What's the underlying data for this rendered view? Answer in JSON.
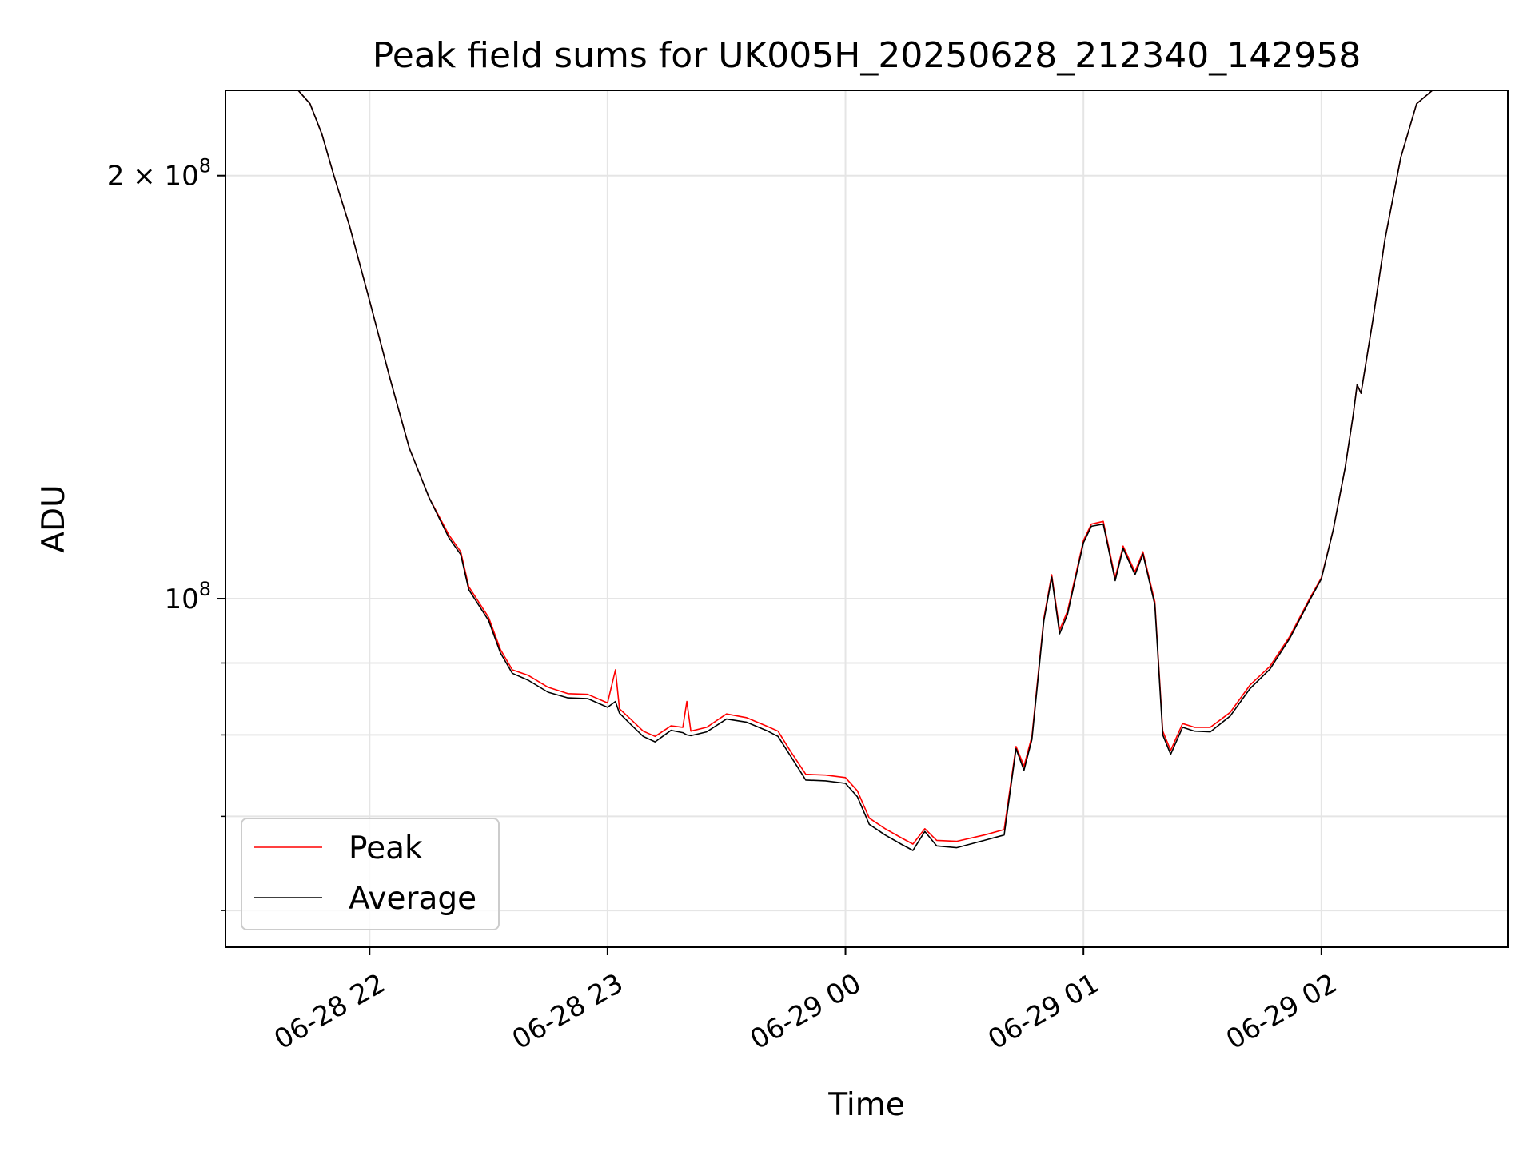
{
  "chart_data": {
    "type": "line",
    "title": "Peak field sums for UK005H_20250628_212340_142958",
    "xlabel": "Time",
    "ylabel": "ADU",
    "x_ticks": [
      "06-28 22",
      "06-28 23",
      "06-29 00",
      "06-29 01",
      "06-29 02"
    ],
    "y_ticks": [
      {
        "value": 200000000,
        "base": "2 × 10",
        "exp": "8"
      },
      {
        "value": 100000000,
        "base": "10",
        "exp": "8"
      }
    ],
    "y_scale": "log",
    "grid": true,
    "legend_position": "lower-left",
    "xlim": [
      "2025-06-28 21:23:40",
      "2025-06-29 02:47:00"
    ],
    "ylim": [
      56500000,
      230000000
    ],
    "series": [
      {
        "name": "Peak",
        "color": "#ff0000",
        "points": [
          [
            "2025-06-28 21:23:40",
            230000000
          ],
          [
            "2025-06-28 21:42:00",
            230000000
          ],
          [
            "2025-06-28 21:45:00",
            225000000
          ],
          [
            "2025-06-28 21:48:00",
            214000000
          ],
          [
            "2025-06-28 21:51:00",
            200000000
          ],
          [
            "2025-06-28 21:55:00",
            184000000
          ],
          [
            "2025-06-28 22:00:00",
            163000000
          ],
          [
            "2025-06-28 22:05:00",
            144000000
          ],
          [
            "2025-06-28 22:10:00",
            128000000
          ],
          [
            "2025-06-28 22:15:00",
            118000000
          ],
          [
            "2025-06-28 22:20:00",
            111000000
          ],
          [
            "2025-06-28 22:23:00",
            108000000
          ],
          [
            "2025-06-28 22:25:00",
            102000000
          ],
          [
            "2025-06-28 22:30:00",
            97000000
          ],
          [
            "2025-06-28 22:33:00",
            92000000
          ],
          [
            "2025-06-28 22:36:00",
            89000000
          ],
          [
            "2025-06-28 22:40:00",
            88200000
          ],
          [
            "2025-06-28 22:45:00",
            86500000
          ],
          [
            "2025-06-28 22:50:00",
            85600000
          ],
          [
            "2025-06-28 22:55:00",
            85500000
          ],
          [
            "2025-06-28 23:00:00",
            84300000
          ],
          [
            "2025-06-28 23:02:00",
            89000000
          ],
          [
            "2025-06-28 23:03:00",
            83500000
          ],
          [
            "2025-06-28 23:06:00",
            82000000
          ],
          [
            "2025-06-28 23:09:00",
            80500000
          ],
          [
            "2025-06-28 23:12:00",
            79800000
          ],
          [
            "2025-06-28 23:16:00",
            81200000
          ],
          [
            "2025-06-28 23:19:00",
            81000000
          ],
          [
            "2025-06-28 23:20:00",
            84500000
          ],
          [
            "2025-06-28 23:21:00",
            80500000
          ],
          [
            "2025-06-28 23:25:00",
            81000000
          ],
          [
            "2025-06-28 23:30:00",
            82800000
          ],
          [
            "2025-06-28 23:35:00",
            82300000
          ],
          [
            "2025-06-28 23:40:00",
            81200000
          ],
          [
            "2025-06-28 23:43:00",
            80500000
          ],
          [
            "2025-06-28 23:46:00",
            78000000
          ],
          [
            "2025-06-28 23:50:00",
            75000000
          ],
          [
            "2025-06-28 23:55:00",
            74900000
          ],
          [
            "2025-06-29 00:00:00",
            74600000
          ],
          [
            "2025-06-29 00:03:00",
            73000000
          ],
          [
            "2025-06-29 00:06:00",
            69800000
          ],
          [
            "2025-06-29 00:10:00",
            68600000
          ],
          [
            "2025-06-29 00:14:00",
            67600000
          ],
          [
            "2025-06-29 00:17:00",
            66900000
          ],
          [
            "2025-06-29 00:20:00",
            68600000
          ],
          [
            "2025-06-29 00:23:00",
            67300000
          ],
          [
            "2025-06-29 00:28:00",
            67200000
          ],
          [
            "2025-06-29 00:35:00",
            67900000
          ],
          [
            "2025-06-29 00:40:00",
            68500000
          ],
          [
            "2025-06-29 00:43:00",
            78500000
          ],
          [
            "2025-06-29 00:45:00",
            76000000
          ],
          [
            "2025-06-29 00:47:00",
            79800000
          ],
          [
            "2025-06-29 00:50:00",
            96800000
          ],
          [
            "2025-06-29 00:52:00",
            104000000
          ],
          [
            "2025-06-29 00:54:00",
            95000000
          ],
          [
            "2025-06-29 00:56:00",
            98000000
          ],
          [
            "2025-06-29 01:00:00",
            110000000
          ],
          [
            "2025-06-29 01:02:00",
            113000000
          ],
          [
            "2025-06-29 01:05:00",
            113500000
          ],
          [
            "2025-06-29 01:08:00",
            103500000
          ],
          [
            "2025-06-29 01:10:00",
            109000000
          ],
          [
            "2025-06-29 01:13:00",
            104500000
          ],
          [
            "2025-06-29 01:15:00",
            108000000
          ],
          [
            "2025-06-29 01:18:00",
            99500000
          ],
          [
            "2025-06-29 01:20:00",
            80500000
          ],
          [
            "2025-06-29 01:22:00",
            78000000
          ],
          [
            "2025-06-29 01:25:00",
            81500000
          ],
          [
            "2025-06-29 01:28:00",
            81000000
          ],
          [
            "2025-06-29 01:32:00",
            81000000
          ],
          [
            "2025-06-29 01:37:00",
            83000000
          ],
          [
            "2025-06-29 01:42:00",
            86800000
          ],
          [
            "2025-06-29 01:47:00",
            89500000
          ],
          [
            "2025-06-29 01:52:00",
            94000000
          ],
          [
            "2025-06-29 01:57:00",
            100000000
          ],
          [
            "2025-06-29 02:00:00",
            103500000
          ],
          [
            "2025-06-29 02:03:00",
            112000000
          ],
          [
            "2025-06-29 02:06:00",
            124000000
          ],
          [
            "2025-06-29 02:08:00",
            135000000
          ],
          [
            "2025-06-29 02:09:00",
            142000000
          ],
          [
            "2025-06-29 02:10:00",
            140000000
          ],
          [
            "2025-06-29 02:13:00",
            158000000
          ],
          [
            "2025-06-29 02:16:00",
            180000000
          ],
          [
            "2025-06-29 02:20:00",
            206000000
          ],
          [
            "2025-06-29 02:24:00",
            225000000
          ],
          [
            "2025-06-29 02:28:00",
            230000000
          ],
          [
            "2025-06-29 02:47:00",
            230000000
          ]
        ]
      },
      {
        "name": "Average",
        "color": "#000000",
        "points": [
          [
            "2025-06-28 21:23:40",
            230000000
          ],
          [
            "2025-06-28 21:42:00",
            230000000
          ],
          [
            "2025-06-28 21:45:00",
            225000000
          ],
          [
            "2025-06-28 21:48:00",
            214000000
          ],
          [
            "2025-06-28 21:51:00",
            200000000
          ],
          [
            "2025-06-28 21:55:00",
            184000000
          ],
          [
            "2025-06-28 22:00:00",
            163000000
          ],
          [
            "2025-06-28 22:05:00",
            144000000
          ],
          [
            "2025-06-28 22:10:00",
            128000000
          ],
          [
            "2025-06-28 22:15:00",
            118000000
          ],
          [
            "2025-06-28 22:20:00",
            110500000
          ],
          [
            "2025-06-28 22:23:00",
            107500000
          ],
          [
            "2025-06-28 22:25:00",
            101500000
          ],
          [
            "2025-06-28 22:30:00",
            96500000
          ],
          [
            "2025-06-28 22:33:00",
            91500000
          ],
          [
            "2025-06-28 22:36:00",
            88500000
          ],
          [
            "2025-06-28 22:40:00",
            87500000
          ],
          [
            "2025-06-28 22:45:00",
            85800000
          ],
          [
            "2025-06-28 22:50:00",
            85000000
          ],
          [
            "2025-06-28 22:55:00",
            84900000
          ],
          [
            "2025-06-28 23:00:00",
            83700000
          ],
          [
            "2025-06-28 23:02:00",
            84500000
          ],
          [
            "2025-06-28 23:03:00",
            82900000
          ],
          [
            "2025-06-28 23:06:00",
            81300000
          ],
          [
            "2025-06-28 23:09:00",
            79800000
          ],
          [
            "2025-06-28 23:12:00",
            79100000
          ],
          [
            "2025-06-28 23:16:00",
            80600000
          ],
          [
            "2025-06-28 23:19:00",
            80300000
          ],
          [
            "2025-06-28 23:20:00",
            80000000
          ],
          [
            "2025-06-28 23:21:00",
            79900000
          ],
          [
            "2025-06-28 23:25:00",
            80400000
          ],
          [
            "2025-06-28 23:30:00",
            82100000
          ],
          [
            "2025-06-28 23:35:00",
            81700000
          ],
          [
            "2025-06-28 23:40:00",
            80600000
          ],
          [
            "2025-06-28 23:43:00",
            79800000
          ],
          [
            "2025-06-28 23:46:00",
            77400000
          ],
          [
            "2025-06-28 23:50:00",
            74300000
          ],
          [
            "2025-06-28 23:55:00",
            74200000
          ],
          [
            "2025-06-29 00:00:00",
            73900000
          ],
          [
            "2025-06-29 00:03:00",
            72300000
          ],
          [
            "2025-06-29 00:06:00",
            69100000
          ],
          [
            "2025-06-29 00:10:00",
            67900000
          ],
          [
            "2025-06-29 00:14:00",
            66900000
          ],
          [
            "2025-06-29 00:17:00",
            66200000
          ],
          [
            "2025-06-29 00:20:00",
            68300000
          ],
          [
            "2025-06-29 00:23:00",
            66700000
          ],
          [
            "2025-06-29 00:28:00",
            66500000
          ],
          [
            "2025-06-29 00:35:00",
            67300000
          ],
          [
            "2025-06-29 00:40:00",
            67900000
          ],
          [
            "2025-06-29 00:43:00",
            78200000
          ],
          [
            "2025-06-29 00:45:00",
            75500000
          ],
          [
            "2025-06-29 00:47:00",
            79400000
          ],
          [
            "2025-06-29 00:50:00",
            96400000
          ],
          [
            "2025-06-29 00:52:00",
            103600000
          ],
          [
            "2025-06-29 00:54:00",
            94400000
          ],
          [
            "2025-06-29 00:56:00",
            97500000
          ],
          [
            "2025-06-29 01:00:00",
            109600000
          ],
          [
            "2025-06-29 01:02:00",
            112600000
          ],
          [
            "2025-06-29 01:05:00",
            113000000
          ],
          [
            "2025-06-29 01:08:00",
            103000000
          ],
          [
            "2025-06-29 01:10:00",
            108600000
          ],
          [
            "2025-06-29 01:13:00",
            104000000
          ],
          [
            "2025-06-29 01:15:00",
            107600000
          ],
          [
            "2025-06-29 01:18:00",
            99000000
          ],
          [
            "2025-06-29 01:20:00",
            80000000
          ],
          [
            "2025-06-29 01:22:00",
            77500000
          ],
          [
            "2025-06-29 01:25:00",
            81000000
          ],
          [
            "2025-06-29 01:28:00",
            80500000
          ],
          [
            "2025-06-29 01:32:00",
            80400000
          ],
          [
            "2025-06-29 01:37:00",
            82500000
          ],
          [
            "2025-06-29 01:42:00",
            86300000
          ],
          [
            "2025-06-29 01:47:00",
            89100000
          ],
          [
            "2025-06-29 01:52:00",
            93700000
          ],
          [
            "2025-06-29 01:57:00",
            99700000
          ],
          [
            "2025-06-29 02:00:00",
            103300000
          ],
          [
            "2025-06-29 02:03:00",
            112000000
          ],
          [
            "2025-06-29 02:06:00",
            124000000
          ],
          [
            "2025-06-29 02:08:00",
            135000000
          ],
          [
            "2025-06-29 02:09:00",
            142000000
          ],
          [
            "2025-06-29 02:10:00",
            140000000
          ],
          [
            "2025-06-29 02:13:00",
            158000000
          ],
          [
            "2025-06-29 02:16:00",
            180000000
          ],
          [
            "2025-06-29 02:20:00",
            206000000
          ],
          [
            "2025-06-29 02:24:00",
            225000000
          ],
          [
            "2025-06-29 02:28:00",
            230000000
          ],
          [
            "2025-06-29 02:47:00",
            230000000
          ]
        ]
      }
    ]
  }
}
